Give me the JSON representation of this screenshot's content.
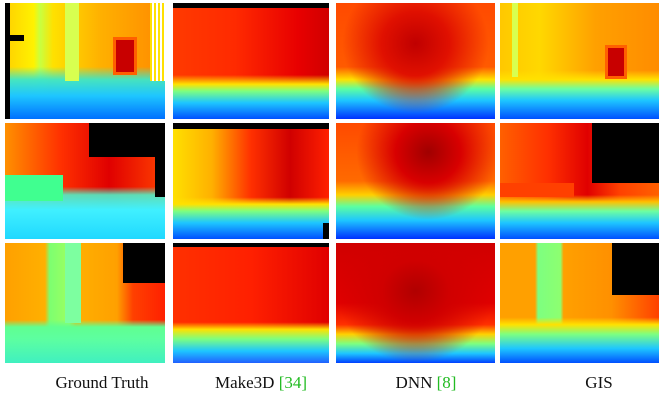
{
  "figure": {
    "columns": [
      {
        "caption": "Ground Truth",
        "ref": ""
      },
      {
        "caption": "Make3D",
        "ref": "[34]"
      },
      {
        "caption": "DNN",
        "ref": "[8]"
      },
      {
        "caption": "GIS",
        "ref": ""
      }
    ],
    "rows": 3,
    "colors": {
      "near": "#0050ff",
      "mid": "#fff200",
      "far": "#d00000",
      "citation": "#22bb22"
    }
  }
}
